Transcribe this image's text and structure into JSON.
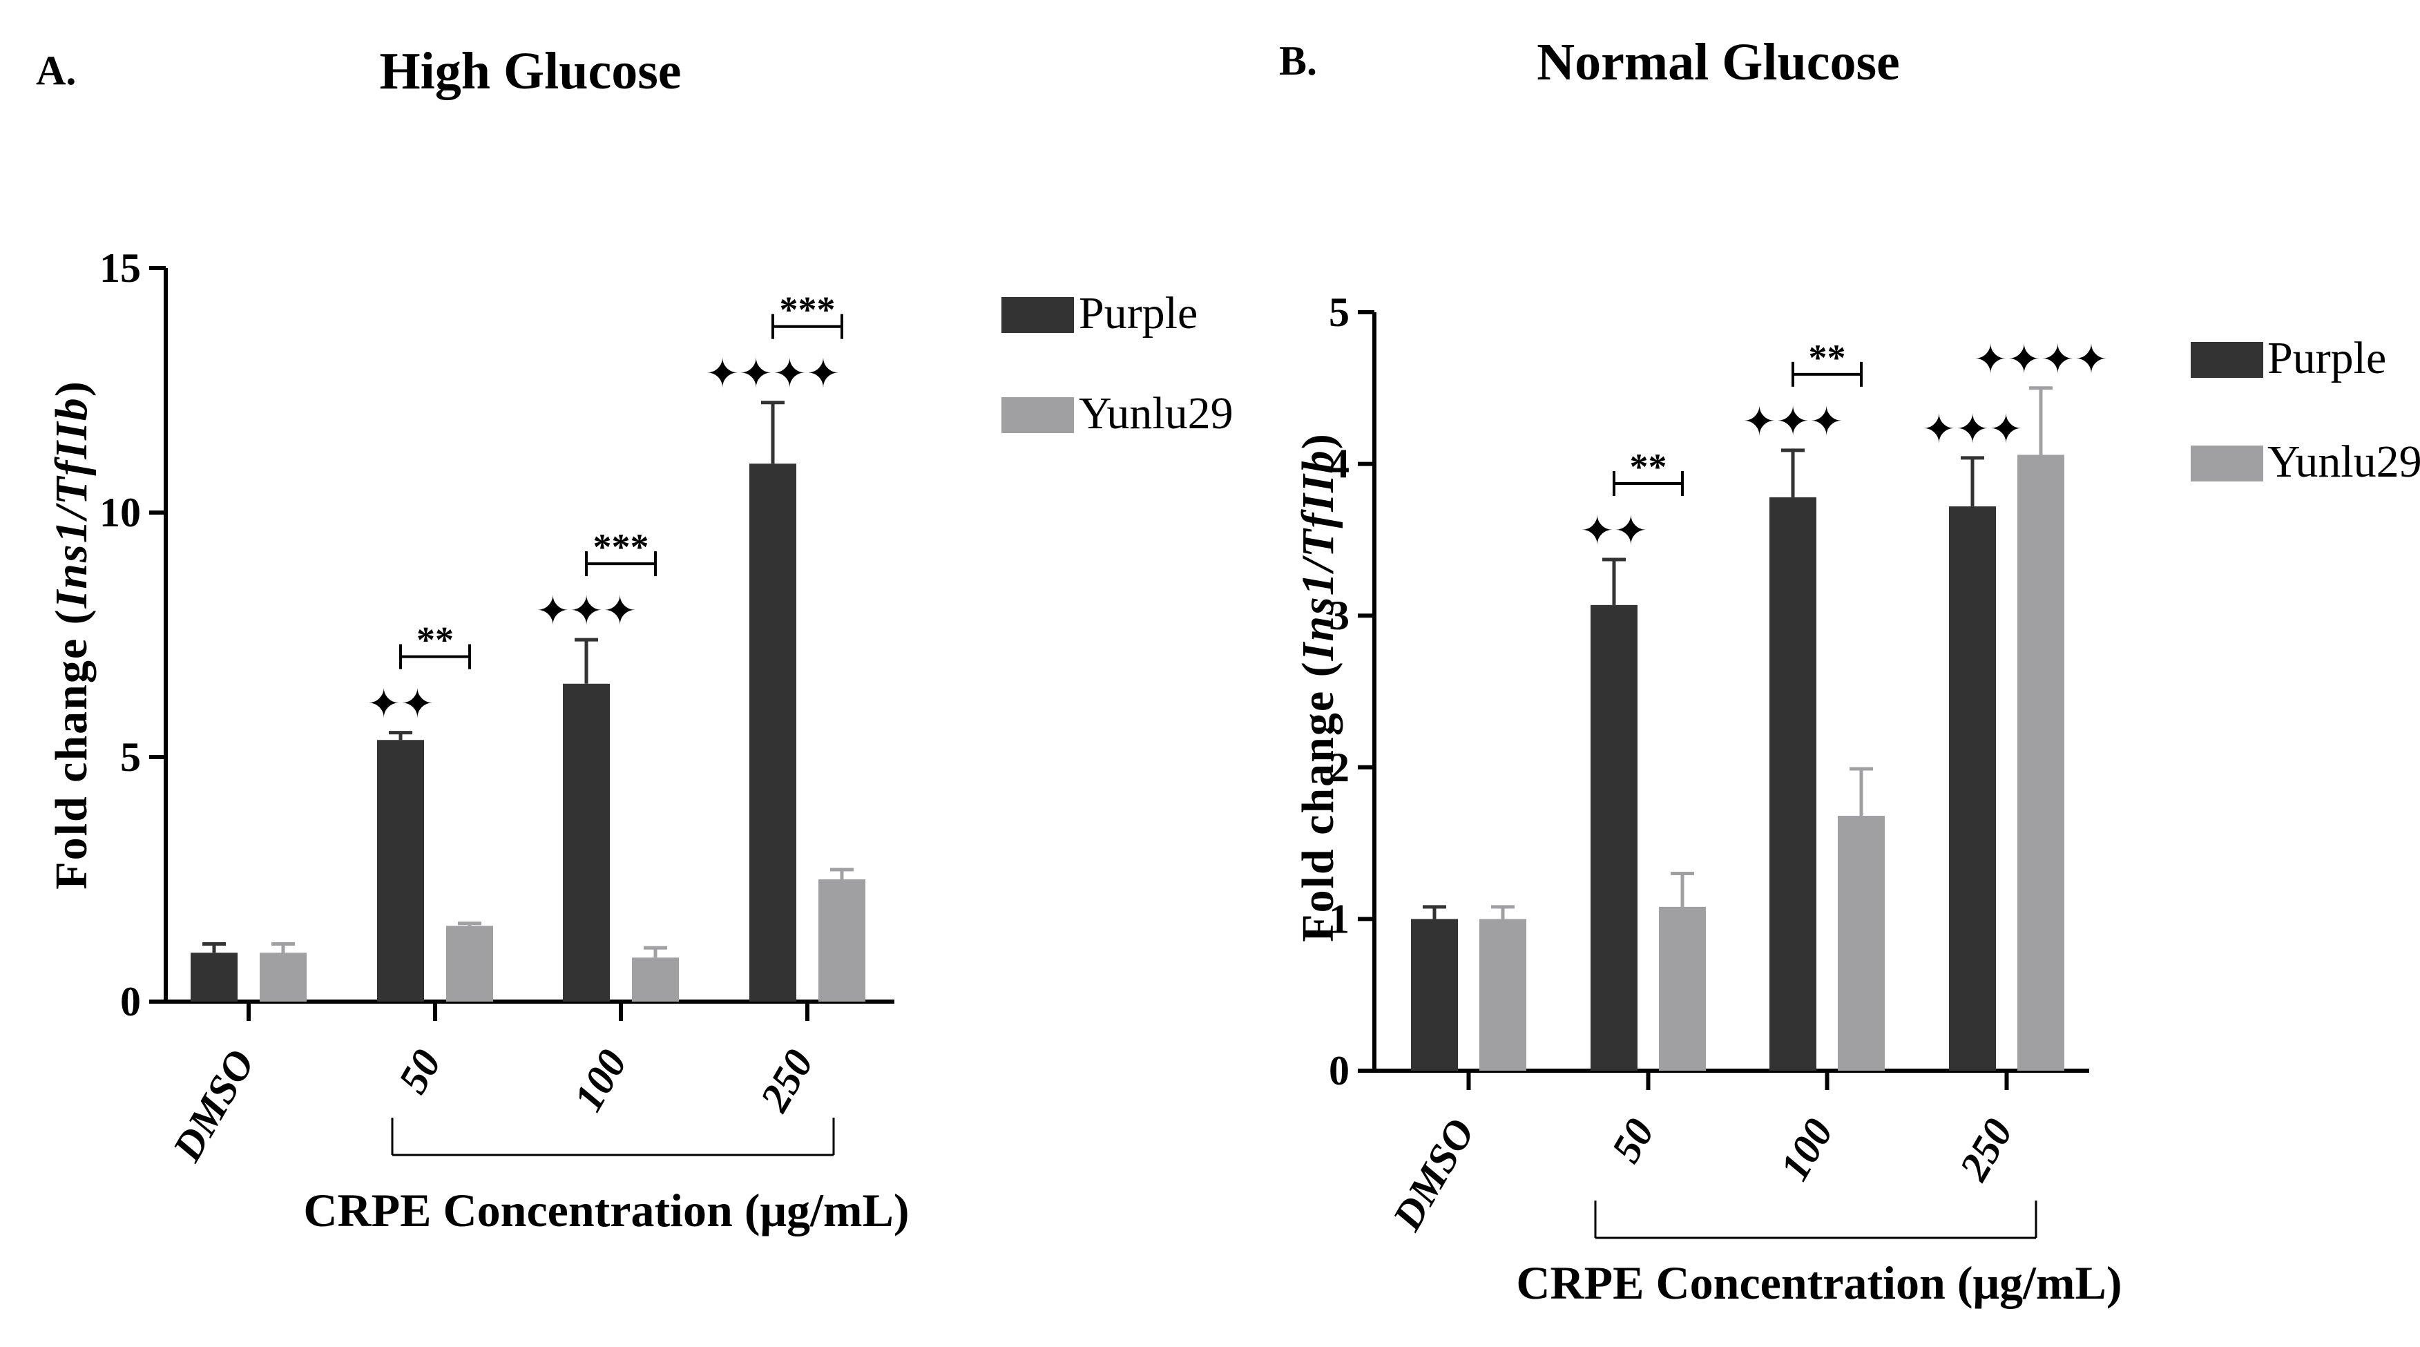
{
  "chart_data": [
    {
      "type": "bar",
      "panel_label": "A.",
      "title": "High Glucose",
      "ylabel_prefix": "Fold change (",
      "ylabel_italic": "Ins1/TfIIb",
      "ylabel_suffix": ")",
      "xlabel": "CRPE Concentration (μg/mL)",
      "ylim": [
        0,
        15
      ],
      "yticks": [
        0,
        5,
        10,
        15
      ],
      "categories": [
        "DMSO",
        "50",
        "100",
        "250"
      ],
      "series": [
        {
          "name": "Purple",
          "color": "#333333",
          "values": [
            1.0,
            5.35,
            6.5,
            11.0
          ],
          "errors": [
            0.18,
            0.15,
            0.9,
            1.25
          ]
        },
        {
          "name": "Yunlu29",
          "color": "#a0a0a3",
          "values": [
            1.0,
            1.55,
            0.9,
            2.5
          ],
          "errors": [
            0.18,
            0.05,
            0.2,
            0.2
          ]
        }
      ],
      "annotations": [
        {
          "category": 1,
          "stars": "**",
          "diamonds": "✦✦"
        },
        {
          "category": 2,
          "stars": "***",
          "diamonds": "✦✦✦"
        },
        {
          "category": 3,
          "stars": "***",
          "diamonds": "✦✦✦✦"
        }
      ]
    },
    {
      "type": "bar",
      "panel_label": "B.",
      "title": "Normal Glucose",
      "ylabel_prefix": "Fold change (",
      "ylabel_italic": "Ins1/TfIIb",
      "ylabel_suffix": ")",
      "xlabel": "CRPE Concentration (μg/mL)",
      "ylim": [
        0,
        5
      ],
      "yticks": [
        0,
        1,
        2,
        3,
        4,
        5
      ],
      "categories": [
        "DMSO",
        "50",
        "100",
        "250"
      ],
      "series": [
        {
          "name": "Purple",
          "color": "#333333",
          "values": [
            1.0,
            3.07,
            3.78,
            3.72
          ],
          "errors": [
            0.08,
            0.3,
            0.31,
            0.32
          ]
        },
        {
          "name": "Yunlu29",
          "color": "#a0a0a3",
          "values": [
            1.0,
            1.08,
            1.68,
            4.06
          ],
          "errors": [
            0.08,
            0.22,
            0.31,
            0.44
          ]
        }
      ],
      "annotations": [
        {
          "category": 1,
          "stars": "**",
          "diamonds": "✦✦"
        },
        {
          "category": 2,
          "stars": "**",
          "diamonds": "✦✦✦"
        },
        {
          "category": 3,
          "stars": "",
          "diamonds": "✦✦✦",
          "diamonds_y29": "✦✦✦✦"
        }
      ]
    }
  ]
}
